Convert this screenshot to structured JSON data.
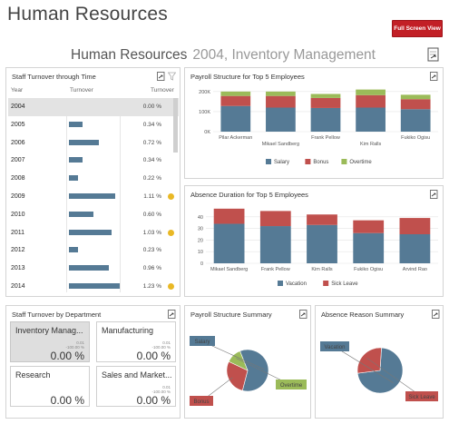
{
  "page": {
    "title": "Human Resources",
    "fullscreen_label": "Full Screen View"
  },
  "subtitle": {
    "main": "Human Resources",
    "detail": "2004, Inventory Management"
  },
  "colors": {
    "accent_red": "#c21f26",
    "salary": "#557a95",
    "bonus": "#c0504d",
    "overtime": "#9bbb59",
    "indicator": "#e9b825"
  },
  "turnover": {
    "title": "Staff Turnover through Time",
    "columns": [
      "Year",
      "Turnover",
      "Turnover"
    ],
    "rows": [
      {
        "year": "2004",
        "pct": "0.00 %",
        "value": 0.0,
        "flag": false,
        "selected": true
      },
      {
        "year": "2005",
        "pct": "0.34 %",
        "value": 0.34,
        "flag": false,
        "selected": false
      },
      {
        "year": "2006",
        "pct": "0.72 %",
        "value": 0.72,
        "flag": false,
        "selected": false
      },
      {
        "year": "2007",
        "pct": "0.34 %",
        "value": 0.34,
        "flag": false,
        "selected": false
      },
      {
        "year": "2008",
        "pct": "0.22 %",
        "value": 0.22,
        "flag": false,
        "selected": false
      },
      {
        "year": "2009",
        "pct": "1.11 %",
        "value": 1.11,
        "flag": true,
        "selected": false
      },
      {
        "year": "2010",
        "pct": "0.60 %",
        "value": 0.6,
        "flag": false,
        "selected": false
      },
      {
        "year": "2011",
        "pct": "1.03 %",
        "value": 1.03,
        "flag": true,
        "selected": false
      },
      {
        "year": "2012",
        "pct": "0.23 %",
        "value": 0.23,
        "flag": false,
        "selected": false
      },
      {
        "year": "2013",
        "pct": "0.96 %",
        "value": 0.96,
        "flag": false,
        "selected": false
      },
      {
        "year": "2014",
        "pct": "1.23 %",
        "value": 1.23,
        "flag": true,
        "selected": false
      }
    ]
  },
  "departments": {
    "title": "Staff Turnover by Department",
    "tiles": [
      {
        "name": "Inventory Manag...",
        "small1": "0.01",
        "small2": "-100.00 %",
        "value": "0.00 %",
        "active": true
      },
      {
        "name": "Manufacturing",
        "small1": "0.01",
        "small2": "-100.00 %",
        "value": "0.00 %",
        "active": false
      },
      {
        "name": "Research",
        "small1": "",
        "small2": "",
        "value": "0.00 %",
        "active": false
      },
      {
        "name": "Sales and Market...",
        "small1": "0.01",
        "small2": "-100.00 %",
        "value": "0.00 %",
        "active": false
      }
    ]
  },
  "payroll_chart": {
    "title": "Payroll Structure for Top 5 Employees",
    "ytick_labels": [
      "200K",
      "100K",
      "0K"
    ],
    "legend": [
      "Salary",
      "Bonus",
      "Overtime"
    ]
  },
  "absence_chart": {
    "title": "Absence Duration for Top 5 Employees",
    "ytick_labels": [
      "40",
      "30",
      "20",
      "10",
      "0"
    ],
    "legend": [
      "Vacation",
      "Sick Leave"
    ]
  },
  "payroll_summary": {
    "title": "Payroll Structure Summary",
    "labels": [
      "Salary",
      "Bonus",
      "Overtime"
    ]
  },
  "absence_summary": {
    "title": "Absence Reason Summary",
    "labels": [
      "Vacation",
      "Sick Leave"
    ]
  },
  "chart_data": [
    {
      "type": "bar",
      "stacked": true,
      "title": "Payroll Structure for Top 5 Employees",
      "categories": [
        "Pilar Ackerman",
        "Mikael Sandberg",
        "Frank Pellow",
        "Kim Ralls",
        "Fukiko Ogisu"
      ],
      "series": [
        {
          "name": "Salary",
          "values": [
            128000,
            120000,
            118000,
            120000,
            112000
          ]
        },
        {
          "name": "Bonus",
          "values": [
            50000,
            58000,
            50000,
            62000,
            50000
          ]
        },
        {
          "name": "Overtime",
          "values": [
            22000,
            22000,
            20000,
            28000,
            22000
          ]
        }
      ],
      "ylim": [
        0,
        240000
      ],
      "legend": "bottom",
      "grid": true
    },
    {
      "type": "bar",
      "stacked": true,
      "title": "Absence Duration for Top 5 Employees",
      "categories": [
        "Mikael Sandberg",
        "Frank Pellow",
        "Kim Ralls",
        "Fukiko Ogisu",
        "Arvind Rao"
      ],
      "series": [
        {
          "name": "Vacation",
          "values": [
            34,
            32,
            33,
            26,
            25
          ]
        },
        {
          "name": "Sick Leave",
          "values": [
            13,
            13,
            9,
            11,
            14
          ]
        }
      ],
      "ylim": [
        0,
        50
      ],
      "legend": "bottom",
      "grid": true
    },
    {
      "type": "pie",
      "title": "Payroll Structure Summary",
      "categories": [
        "Salary",
        "Bonus",
        "Overtime"
      ],
      "values": [
        60,
        28,
        12
      ]
    },
    {
      "type": "pie",
      "title": "Absence Reason Summary",
      "categories": [
        "Vacation",
        "Sick Leave"
      ],
      "values": [
        72,
        28
      ]
    }
  ]
}
